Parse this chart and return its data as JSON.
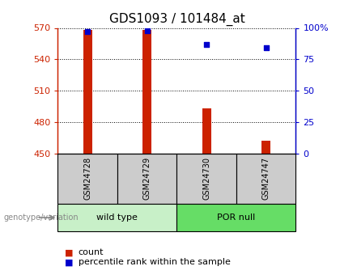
{
  "title": "GDS1093 / 101484_at",
  "samples": [
    "GSM24728",
    "GSM24729",
    "GSM24730",
    "GSM24747"
  ],
  "counts": [
    568,
    568,
    493,
    462
  ],
  "percentiles": [
    97,
    98,
    87,
    84
  ],
  "groups": [
    {
      "label": "wild type",
      "indices": [
        0,
        1
      ],
      "color": "#c8f0c8"
    },
    {
      "label": "POR null",
      "indices": [
        2,
        3
      ],
      "color": "#66dd66"
    }
  ],
  "ylim_left": [
    450,
    570
  ],
  "yticks_left": [
    450,
    480,
    510,
    540,
    570
  ],
  "ylim_right": [
    0,
    100
  ],
  "yticks_right": [
    0,
    25,
    50,
    75,
    100
  ],
  "ytick_right_labels": [
    "0",
    "25",
    "50",
    "75",
    "100%"
  ],
  "bar_color": "#cc2200",
  "dot_color": "#0000cc",
  "bar_width": 0.15,
  "genotype_label": "genotype/variation",
  "legend_count": "count",
  "legend_percentile": "percentile rank within the sample",
  "left_axis_color": "#cc2200",
  "right_axis_color": "#0000cc",
  "sample_box_color": "#cccccc",
  "title_fontsize": 11,
  "tick_fontsize": 8,
  "sample_fontsize": 7,
  "group_fontsize": 8,
  "legend_fontsize": 8
}
